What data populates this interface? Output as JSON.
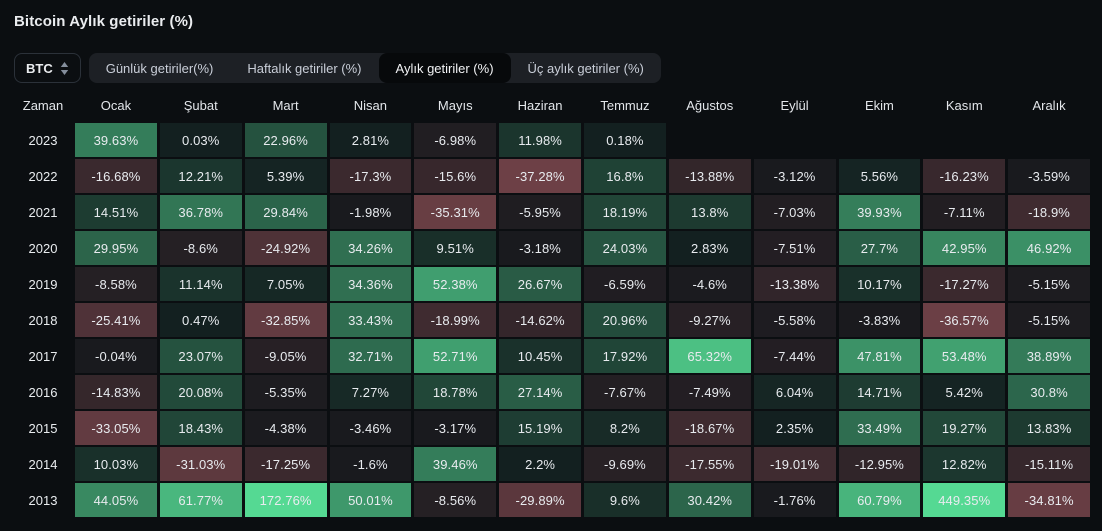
{
  "page": {
    "title": "Bitcoin Aylık getiriler (%)"
  },
  "theme": {
    "page_background": "#0b0e11",
    "tab_bar_background": "#1d2025",
    "active_tab_background": "#07090b",
    "text_color": "#eaecef"
  },
  "controls": {
    "asset_select": {
      "value": "BTC",
      "icon": "caret-up-down"
    },
    "tabs": [
      {
        "label": "Günlük getiriler(%)",
        "active": false
      },
      {
        "label": "Haftalık getiriler (%)",
        "active": false
      },
      {
        "label": "Aylık getiriler (%)",
        "active": true
      },
      {
        "label": "Üç aylık getiriler (%)",
        "active": false
      }
    ]
  },
  "chart_data": {
    "type": "heatmap",
    "title": "Bitcoin Aylık getiriler (%)",
    "row_header": "Zaman",
    "columns": [
      "Ocak",
      "Şubat",
      "Mart",
      "Nisan",
      "Mayıs",
      "Haziran",
      "Temmuz",
      "Ağustos",
      "Eylül",
      "Ekim",
      "Kasım",
      "Aralık"
    ],
    "value_suffix": "%",
    "rows": [
      {
        "year": "2023",
        "values": [
          39.63,
          0.03,
          22.96,
          2.81,
          -6.98,
          11.98,
          0.18,
          null,
          null,
          null,
          null,
          null
        ]
      },
      {
        "year": "2022",
        "values": [
          -16.68,
          12.21,
          5.39,
          -17.3,
          -15.6,
          -37.28,
          16.8,
          -13.88,
          -3.12,
          5.56,
          -16.23,
          -3.59
        ]
      },
      {
        "year": "2021",
        "values": [
          14.51,
          36.78,
          29.84,
          -1.98,
          -35.31,
          -5.95,
          18.19,
          13.8,
          -7.03,
          39.93,
          -7.11,
          -18.9
        ]
      },
      {
        "year": "2020",
        "values": [
          29.95,
          -8.6,
          -24.92,
          34.26,
          9.51,
          -3.18,
          24.03,
          2.83,
          -7.51,
          27.7,
          42.95,
          46.92
        ]
      },
      {
        "year": "2019",
        "values": [
          -8.58,
          11.14,
          7.05,
          34.36,
          52.38,
          26.67,
          -6.59,
          -4.6,
          -13.38,
          10.17,
          -17.27,
          -5.15
        ]
      },
      {
        "year": "2018",
        "values": [
          -25.41,
          0.47,
          -32.85,
          33.43,
          -18.99,
          -14.62,
          20.96,
          -9.27,
          -5.58,
          -3.83,
          -36.57,
          -5.15
        ]
      },
      {
        "year": "2017",
        "values": [
          -0.04,
          23.07,
          -9.05,
          32.71,
          52.71,
          10.45,
          17.92,
          65.32,
          -7.44,
          47.81,
          53.48,
          38.89
        ]
      },
      {
        "year": "2016",
        "values": [
          -14.83,
          20.08,
          -5.35,
          7.27,
          18.78,
          27.14,
          -7.67,
          -7.49,
          6.04,
          14.71,
          5.42,
          30.8
        ]
      },
      {
        "year": "2015",
        "values": [
          -33.05,
          18.43,
          -4.38,
          -3.46,
          -3.17,
          15.19,
          8.2,
          -18.67,
          2.35,
          33.49,
          19.27,
          13.83
        ]
      },
      {
        "year": "2014",
        "values": [
          10.03,
          -31.03,
          -17.25,
          -1.6,
          39.46,
          2.2,
          -9.69,
          -17.55,
          -19.01,
          -12.95,
          12.82,
          -15.11
        ]
      },
      {
        "year": "2013",
        "values": [
          44.05,
          61.77,
          172.76,
          50.01,
          -8.56,
          -29.89,
          9.6,
          30.42,
          -1.76,
          60.79,
          449.35,
          -34.81
        ]
      }
    ],
    "colors": {
      "positive": "#55d993",
      "negative": "#cb6a72",
      "cell_base": "#10161a",
      "scale_max": 75,
      "min_tint": 0.05
    }
  }
}
